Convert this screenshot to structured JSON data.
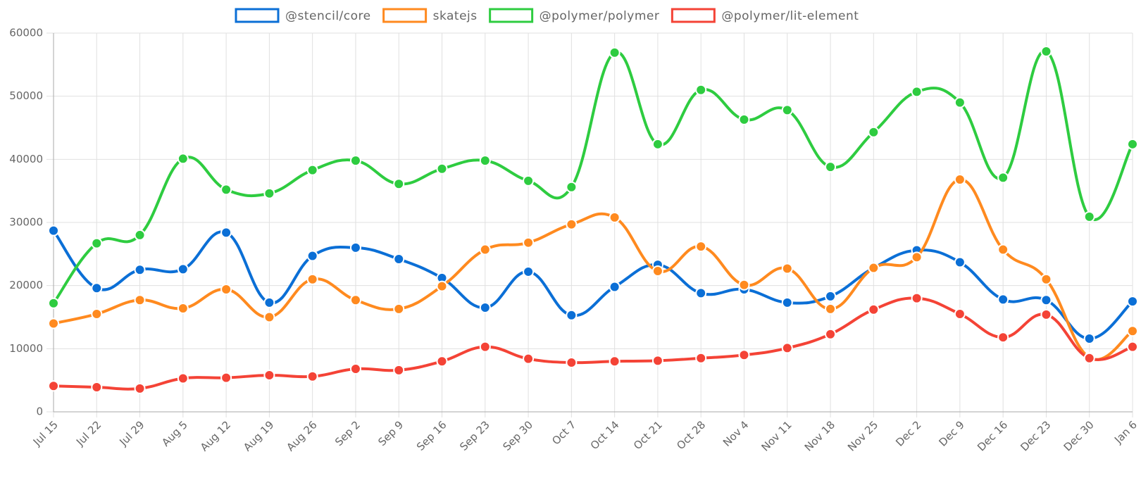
{
  "chart_data": {
    "type": "line",
    "categories": [
      "Jul 15",
      "Jul 22",
      "Jul 29",
      "Aug 5",
      "Aug 12",
      "Aug 19",
      "Aug 26",
      "Sep 2",
      "Sep 9",
      "Sep 16",
      "Sep 23",
      "Sep 30",
      "Oct 7",
      "Oct 14",
      "Oct 21",
      "Oct 28",
      "Nov 4",
      "Nov 11",
      "Nov 18",
      "Nov 25",
      "Dec 2",
      "Dec 9",
      "Dec 16",
      "Dec 23",
      "Dec 30",
      "Jan 6"
    ],
    "series": [
      {
        "name": "@stencil/core",
        "color": "#0b6fd6",
        "values": [
          28700,
          19600,
          22500,
          22600,
          28400,
          17300,
          24700,
          26000,
          24200,
          21200,
          16500,
          22200,
          15300,
          19800,
          23300,
          18800,
          19400,
          17300,
          18300,
          22800,
          25600,
          23700,
          17800,
          17700,
          11600,
          17500
        ]
      },
      {
        "name": "skatejs",
        "color": "#ff8a1f",
        "values": [
          14000,
          15500,
          17700,
          16400,
          19400,
          15000,
          21000,
          17700,
          16300,
          19900,
          25700,
          26800,
          29700,
          30800,
          22300,
          26200,
          20100,
          22700,
          16300,
          22800,
          24500,
          36800,
          25700,
          21000,
          8600,
          12800
        ]
      },
      {
        "name": "@polymer/polymer",
        "color": "#2ecc40",
        "values": [
          17200,
          26700,
          28000,
          40100,
          35200,
          34600,
          38300,
          39800,
          36100,
          38500,
          39800,
          36600,
          35600,
          56900,
          42400,
          51000,
          46300,
          47800,
          38800,
          44300,
          50700,
          49000,
          37100,
          57100,
          30900,
          42400
        ]
      },
      {
        "name": "@polymer/lit-element",
        "color": "#f44336",
        "values": [
          4100,
          3900,
          3700,
          5300,
          5400,
          5800,
          5600,
          6800,
          6600,
          8000,
          10300,
          8400,
          7800,
          8000,
          8100,
          8500,
          9000,
          10100,
          12300,
          16200,
          18000,
          15500,
          11800,
          15400,
          8500,
          10300
        ]
      }
    ],
    "ylim": [
      0,
      60000
    ],
    "yticks": [
      0,
      10000,
      20000,
      30000,
      40000,
      50000,
      60000
    ],
    "grid": true
  }
}
